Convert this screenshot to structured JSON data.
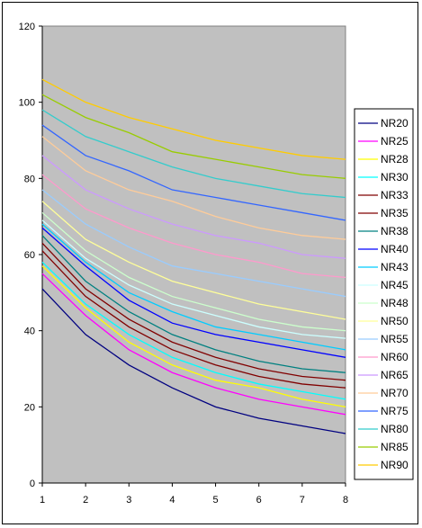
{
  "chart_data": {
    "type": "line",
    "title": "",
    "xlabel": "",
    "ylabel": "",
    "x": [
      1,
      2,
      3,
      4,
      5,
      6,
      7,
      8
    ],
    "ylim": [
      0,
      120
    ],
    "yticks": [
      0,
      20,
      40,
      60,
      80,
      100,
      120
    ],
    "grid": false,
    "plot_background": "#C0C0C0",
    "legend_position": "right",
    "series": [
      {
        "name": "NR20",
        "color": "#000080",
        "values": [
          51,
          39,
          31,
          25,
          20,
          17,
          15,
          13
        ]
      },
      {
        "name": "NR25",
        "color": "#FF00FF",
        "values": [
          55,
          44,
          35,
          29,
          25,
          22,
          20,
          18
        ]
      },
      {
        "name": "NR28",
        "color": "#FFFF00",
        "values": [
          57,
          46,
          37,
          31,
          27,
          25,
          22,
          20
        ]
      },
      {
        "name": "NR30",
        "color": "#00FFFF",
        "values": [
          58,
          47,
          39,
          33,
          29,
          26,
          24,
          22
        ]
      },
      {
        "name": "NR33",
        "color": "#800000",
        "values": [
          61,
          49,
          41,
          35,
          31,
          28,
          26,
          25
        ]
      },
      {
        "name": "NR35",
        "color": "#800000",
        "values": [
          63,
          51,
          43,
          37,
          33,
          30,
          28,
          27
        ]
      },
      {
        "name": "NR38",
        "color": "#008080",
        "values": [
          65,
          53,
          45,
          39,
          35,
          32,
          30,
          29
        ]
      },
      {
        "name": "NR40",
        "color": "#0000FF",
        "values": [
          67,
          57,
          48,
          42,
          39,
          37,
          35,
          33
        ]
      },
      {
        "name": "NR43",
        "color": "#00CCFF",
        "values": [
          68,
          58,
          50,
          45,
          41,
          39,
          37,
          35
        ]
      },
      {
        "name": "NR45",
        "color": "#CCFFFF",
        "values": [
          69,
          59,
          52,
          47,
          44,
          41,
          39,
          38
        ]
      },
      {
        "name": "NR48",
        "color": "#CCFFCC",
        "values": [
          71,
          61,
          54,
          49,
          46,
          43,
          41,
          40
        ]
      },
      {
        "name": "NR50",
        "color": "#FFFF99",
        "values": [
          74,
          64,
          58,
          53,
          50,
          47,
          45,
          43
        ]
      },
      {
        "name": "NR55",
        "color": "#99CCFF",
        "values": [
          77,
          68,
          62,
          57,
          55,
          53,
          51,
          49
        ]
      },
      {
        "name": "NR60",
        "color": "#FF99CC",
        "values": [
          81,
          72,
          67,
          63,
          60,
          58,
          55,
          54
        ]
      },
      {
        "name": "NR65",
        "color": "#CC99FF",
        "values": [
          86,
          77,
          72,
          68,
          65,
          63,
          60,
          59
        ]
      },
      {
        "name": "NR70",
        "color": "#FFCC99",
        "values": [
          91,
          82,
          77,
          74,
          70,
          67,
          65,
          64
        ]
      },
      {
        "name": "NR75",
        "color": "#3366FF",
        "values": [
          94,
          86,
          82,
          77,
          75,
          73,
          71,
          69
        ]
      },
      {
        "name": "NR80",
        "color": "#33CCCC",
        "values": [
          98,
          91,
          87,
          83,
          80,
          78,
          76,
          75
        ]
      },
      {
        "name": "NR85",
        "color": "#99CC00",
        "values": [
          102,
          96,
          92,
          87,
          85,
          83,
          81,
          80
        ]
      },
      {
        "name": "NR90",
        "color": "#FFCC00",
        "values": [
          106,
          100,
          96,
          93,
          90,
          88,
          86,
          85
        ]
      }
    ]
  }
}
